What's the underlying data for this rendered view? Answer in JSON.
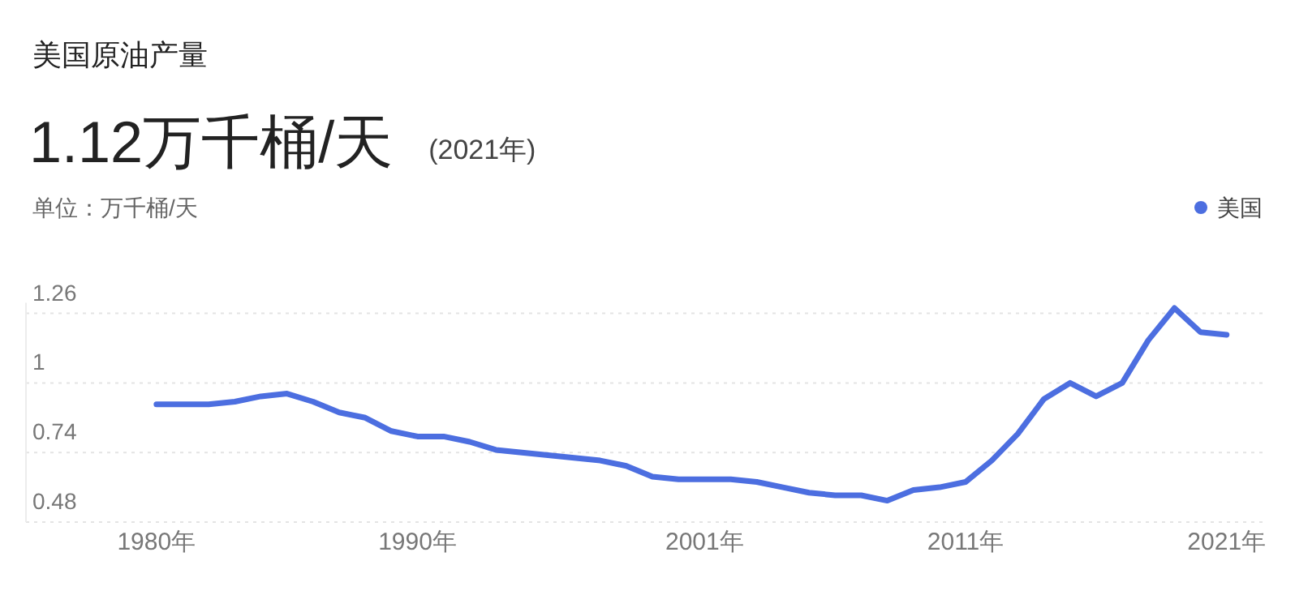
{
  "chart_data": {
    "type": "line",
    "title": "美国原油产量",
    "subtitle": "1.12万千桶/天",
    "annotations": [
      "(2021年)"
    ],
    "ylabel": "单位：万千桶/天",
    "x": [
      1980,
      1981,
      1982,
      1983,
      1984,
      1985,
      1986,
      1987,
      1988,
      1989,
      1990,
      1991,
      1992,
      1993,
      1994,
      1995,
      1996,
      1997,
      1998,
      1999,
      2000,
      2001,
      2002,
      2003,
      2004,
      2005,
      2006,
      2007,
      2008,
      2009,
      2010,
      2011,
      2012,
      2013,
      2014,
      2015,
      2016,
      2017,
      2018,
      2019,
      2020,
      2021
    ],
    "series": [
      {
        "name": "美国",
        "color": "#4c6ee0",
        "values": [
          0.92,
          0.92,
          0.92,
          0.93,
          0.95,
          0.96,
          0.93,
          0.89,
          0.87,
          0.82,
          0.8,
          0.8,
          0.78,
          0.75,
          0.74,
          0.73,
          0.72,
          0.71,
          0.69,
          0.65,
          0.64,
          0.64,
          0.64,
          0.63,
          0.61,
          0.59,
          0.58,
          0.58,
          0.56,
          0.6,
          0.61,
          0.63,
          0.71,
          0.81,
          0.94,
          1.0,
          0.95,
          1.0,
          1.16,
          1.28,
          1.19,
          1.18
        ]
      }
    ],
    "xticks": [
      {
        "value": 1980,
        "label": "1980年"
      },
      {
        "value": 1990,
        "label": "1990年"
      },
      {
        "value": 2001,
        "label": "2001年"
      },
      {
        "value": 2011,
        "label": "2011年"
      },
      {
        "value": 2021,
        "label": "2021年"
      }
    ],
    "xlim": [
      1975,
      2022.5
    ],
    "ylim": [
      0.48,
      1.3
    ],
    "yticks": [
      0.48,
      0.74,
      1,
      1.26
    ],
    "grid": "y",
    "legend": "top right",
    "marker": "none",
    "line_style": "solid"
  }
}
